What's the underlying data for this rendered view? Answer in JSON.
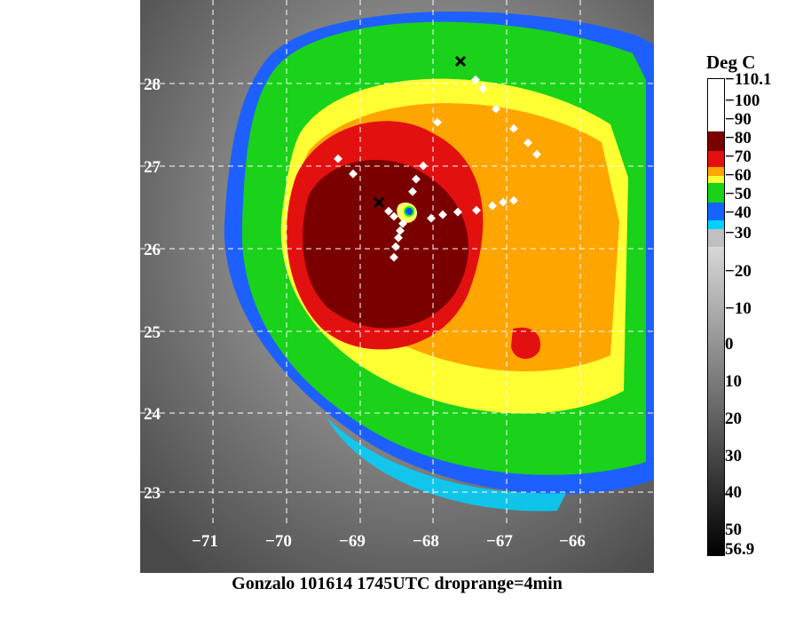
{
  "map": {
    "lat_labels": [
      "28",
      "27",
      "26",
      "25",
      "24",
      "23"
    ],
    "lon_labels": [
      "−71",
      "−70",
      "−69",
      "−68",
      "−67",
      "−66"
    ],
    "caption": "Gonzalo 101614 1745UTC droprange=4min"
  },
  "colorbar": {
    "title": "Deg C",
    "ticks": [
      "−110.1",
      "−100",
      "−90",
      "−80",
      "−70",
      "−60",
      "−50",
      "−40",
      "−30",
      "−20",
      "−10",
      "0",
      "10",
      "20",
      "30",
      "40",
      "50",
      "56.9"
    ],
    "colors": {
      "white": "#ffffff",
      "maroon": "#7a0000",
      "red": "#e31010",
      "orange": "#ffa500",
      "yellow": "#ffff33",
      "green": "#19d219",
      "blue": "#1464ff",
      "cyan": "#00d2ff"
    }
  }
}
